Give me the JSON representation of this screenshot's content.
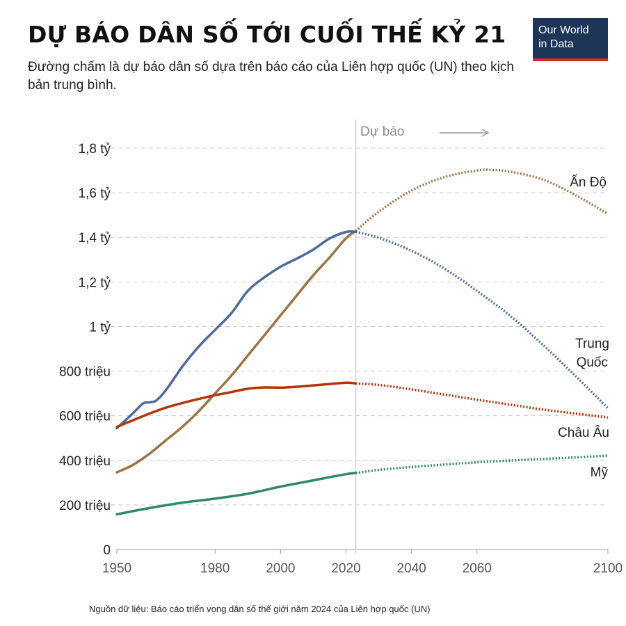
{
  "header": {
    "title": "DỰ BÁO DÂN SỐ TỚI CUỐI THẾ KỶ 21",
    "subtitle": "Đường chấm là dự báo dân số dựa trên báo cáo của Liên hợp quốc (UN) theo kịch bản trung bình."
  },
  "logo": {
    "line1": "Our World",
    "line2": "in Data"
  },
  "footer": {
    "source": "Nguồn dữ liệu: Báo cáo triển vọng dân số thế giới năm 2024 của Liên hợp quốc (UN)"
  },
  "chart_data": {
    "type": "line",
    "title": "DỰ BÁO DÂN SỐ TỚI CUỐI THẾ KỶ 21",
    "xlabel": "",
    "ylabel": "",
    "xlim": [
      1950,
      2100
    ],
    "ylim": [
      0,
      1800
    ],
    "unit": "million",
    "grid": true,
    "forecast_start": 2023,
    "forecast_label": "Dự báo",
    "y_ticks": [
      {
        "value": 0,
        "label": "0"
      },
      {
        "value": 200,
        "label": "200 triệu"
      },
      {
        "value": 400,
        "label": "400 triệu"
      },
      {
        "value": 600,
        "label": "600 triệu"
      },
      {
        "value": 800,
        "label": "800 triệu"
      },
      {
        "value": 1000,
        "label": "1 tỷ"
      },
      {
        "value": 1200,
        "label": "1,2 tỷ"
      },
      {
        "value": 1400,
        "label": "1,4 tỷ"
      },
      {
        "value": 1600,
        "label": "1,6 tỷ"
      },
      {
        "value": 1800,
        "label": "1,8 tỷ"
      }
    ],
    "x_ticks": [
      1950,
      1980,
      2000,
      2020,
      2040,
      2060,
      2100
    ],
    "series": [
      {
        "name": "Ấn Độ",
        "color": "#9a7445",
        "historical": [
          [
            1950,
            346
          ],
          [
            1955,
            380
          ],
          [
            1960,
            430
          ],
          [
            1965,
            490
          ],
          [
            1970,
            550
          ],
          [
            1975,
            620
          ],
          [
            1980,
            700
          ],
          [
            1985,
            780
          ],
          [
            1990,
            870
          ],
          [
            1995,
            960
          ],
          [
            2000,
            1050
          ],
          [
            2005,
            1140
          ],
          [
            2010,
            1230
          ],
          [
            2015,
            1310
          ],
          [
            2020,
            1396
          ],
          [
            2023,
            1428
          ]
        ],
        "forecast": [
          [
            2023,
            1428
          ],
          [
            2030,
            1515
          ],
          [
            2040,
            1610
          ],
          [
            2050,
            1670
          ],
          [
            2060,
            1700
          ],
          [
            2065,
            1702
          ],
          [
            2070,
            1695
          ],
          [
            2080,
            1660
          ],
          [
            2090,
            1590
          ],
          [
            2100,
            1505
          ]
        ]
      },
      {
        "name": "Trung Quốc",
        "color": "#4c6a9c",
        "historical": [
          [
            1950,
            544
          ],
          [
            1955,
            612
          ],
          [
            1958,
            655
          ],
          [
            1960,
            660
          ],
          [
            1962,
            668
          ],
          [
            1965,
            715
          ],
          [
            1970,
            820
          ],
          [
            1975,
            910
          ],
          [
            1980,
            985
          ],
          [
            1985,
            1060
          ],
          [
            1990,
            1160
          ],
          [
            1995,
            1220
          ],
          [
            2000,
            1268
          ],
          [
            2005,
            1305
          ],
          [
            2010,
            1345
          ],
          [
            2015,
            1395
          ],
          [
            2020,
            1424
          ],
          [
            2023,
            1425
          ]
        ],
        "forecast": [
          [
            2023,
            1425
          ],
          [
            2030,
            1398
          ],
          [
            2040,
            1340
          ],
          [
            2050,
            1260
          ],
          [
            2060,
            1160
          ],
          [
            2070,
            1050
          ],
          [
            2080,
            920
          ],
          [
            2090,
            780
          ],
          [
            2100,
            633
          ]
        ]
      },
      {
        "name": "Châu Âu",
        "color": "#b13507",
        "historical": [
          [
            1950,
            550
          ],
          [
            1955,
            580
          ],
          [
            1960,
            610
          ],
          [
            1965,
            636
          ],
          [
            1970,
            657
          ],
          [
            1975,
            675
          ],
          [
            1980,
            692
          ],
          [
            1985,
            706
          ],
          [
            1990,
            721
          ],
          [
            1995,
            727
          ],
          [
            2000,
            726
          ],
          [
            2005,
            730
          ],
          [
            2010,
            736
          ],
          [
            2015,
            742
          ],
          [
            2020,
            748
          ],
          [
            2023,
            745
          ]
        ],
        "forecast": [
          [
            2023,
            745
          ],
          [
            2030,
            738
          ],
          [
            2040,
            718
          ],
          [
            2050,
            695
          ],
          [
            2060,
            672
          ],
          [
            2070,
            650
          ],
          [
            2080,
            628
          ],
          [
            2090,
            610
          ],
          [
            2100,
            592
          ]
        ]
      },
      {
        "name": "Mỹ",
        "color": "#2f8a63",
        "historical": [
          [
            1950,
            158
          ],
          [
            1960,
            186
          ],
          [
            1970,
            210
          ],
          [
            1980,
            228
          ],
          [
            1990,
            250
          ],
          [
            2000,
            282
          ],
          [
            2010,
            310
          ],
          [
            2020,
            338
          ],
          [
            2023,
            343
          ]
        ],
        "forecast": [
          [
            2023,
            343
          ],
          [
            2030,
            357
          ],
          [
            2040,
            370
          ],
          [
            2050,
            381
          ],
          [
            2060,
            391
          ],
          [
            2070,
            399
          ],
          [
            2080,
            406
          ],
          [
            2090,
            413
          ],
          [
            2100,
            421
          ]
        ]
      }
    ]
  }
}
